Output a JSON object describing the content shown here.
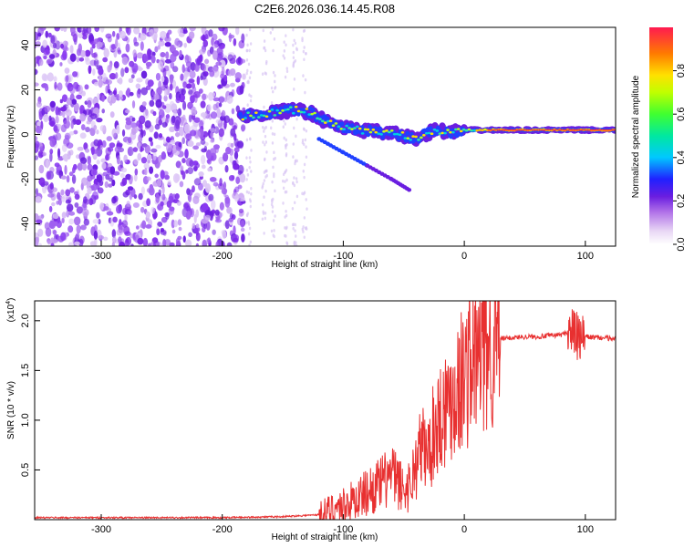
{
  "chart_data": [
    {
      "type": "heatmap",
      "title": "C2E6.2026.036.14.45.R08",
      "xlabel": "Height of straight line (km)",
      "ylabel": "Frequency (Hz)",
      "xlim": [
        -355,
        125
      ],
      "ylim": [
        -50,
        48
      ],
      "x_ticks": [
        -300,
        -200,
        -100,
        0,
        100
      ],
      "y_ticks": [
        -40,
        -20,
        0,
        20,
        40
      ],
      "colorbar": {
        "label": "Normalized spectral amplitude",
        "range": [
          0.0,
          1.0
        ],
        "ticks": [
          0.0,
          0.2,
          0.4,
          0.6,
          0.8
        ]
      },
      "ridge": [
        [
          -185,
          8
        ],
        [
          -170,
          9
        ],
        [
          -155,
          10
        ],
        [
          -140,
          11
        ],
        [
          -128,
          10
        ],
        [
          -115,
          6
        ],
        [
          -100,
          3
        ],
        [
          -85,
          2
        ],
        [
          -70,
          1
        ],
        [
          -55,
          0
        ],
        [
          -40,
          -2
        ],
        [
          -25,
          2
        ],
        [
          -10,
          1
        ],
        [
          0,
          2
        ],
        [
          20,
          2
        ],
        [
          50,
          2
        ],
        [
          80,
          2
        ],
        [
          100,
          2
        ],
        [
          125,
          2
        ]
      ],
      "branch": [
        [
          -120,
          -2
        ],
        [
          -100,
          -8
        ],
        [
          -80,
          -14
        ],
        [
          -60,
          -20
        ],
        [
          -45,
          -25
        ]
      ]
    },
    {
      "type": "line",
      "title": "",
      "xlabel": "Height of straight line (km)",
      "ylabel": "SNR (10 * v/v)",
      "y_scale_label": "(x10",
      "y_scale_exponent": "4",
      "xlim": [
        -355,
        125
      ],
      "ylim": [
        0,
        2.2
      ],
      "x_ticks": [
        -300,
        -200,
        -100,
        0,
        100
      ],
      "y_ticks": [
        0.5,
        1.0,
        1.5,
        2.0
      ],
      "line_color": "#e83030",
      "series": [
        {
          "name": "SNR",
          "x": [
            -355,
            -300,
            -250,
            -200,
            -150,
            -120,
            -110,
            -100,
            -90,
            -80,
            -70,
            -60,
            -55,
            -50,
            -45,
            -40,
            -35,
            -30,
            -25,
            -20,
            -15,
            -10,
            -5,
            0,
            5,
            10,
            15,
            20,
            25,
            30,
            40,
            50,
            60,
            70,
            80,
            85,
            90,
            95,
            100,
            110,
            125
          ],
          "y": [
            0.02,
            0.02,
            0.02,
            0.02,
            0.03,
            0.05,
            0.1,
            0.15,
            0.2,
            0.28,
            0.35,
            0.45,
            0.38,
            0.3,
            0.35,
            0.55,
            0.75,
            0.65,
            0.9,
            1.05,
            1.15,
            1.25,
            1.35,
            1.45,
            1.55,
            1.62,
            1.7,
            1.76,
            1.8,
            1.82,
            1.83,
            1.84,
            1.84,
            1.85,
            1.86,
            1.88,
            1.9,
            1.8,
            1.84,
            1.83,
            1.82
          ]
        }
      ]
    }
  ]
}
